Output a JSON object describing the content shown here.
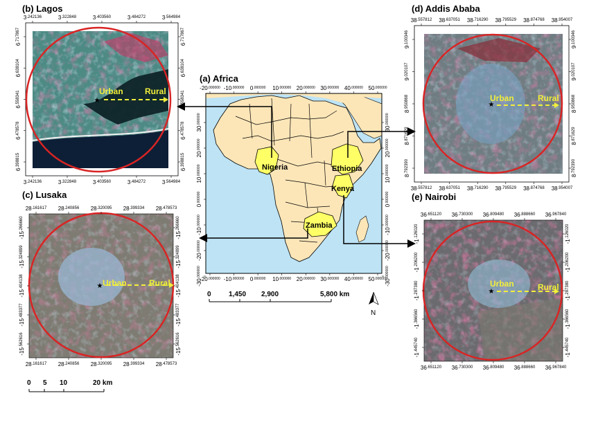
{
  "panels": {
    "africa": {
      "title": "(a) Africa",
      "countries": [
        "Nigeria",
        "Ethiopia",
        "Kenya",
        "Zambia"
      ],
      "lon_ticks": [
        "-20",
        "-10",
        "0",
        "10",
        "20",
        "30",
        "40",
        "50"
      ],
      "lon_suffix": ".000000",
      "lat_ticks": [
        "30",
        "20",
        "10",
        "0",
        "-10",
        "-20",
        "-30"
      ],
      "lat_suffix": ".000000",
      "scale_labels": [
        "0",
        "1,450",
        "2,900",
        "5,800 km"
      ],
      "north_label": "N"
    },
    "lagos": {
      "title": "(b) Lagos",
      "urban_label": "Urban",
      "rural_label": "Rural",
      "top_ticks": [
        [
          "3",
          ".242136"
        ],
        [
          "3",
          ".322848"
        ],
        [
          "3",
          ".403560"
        ],
        [
          "3",
          ".484272"
        ],
        [
          "3",
          ".564984"
        ]
      ],
      "left_ticks": [
        [
          "6",
          ".717867"
        ],
        [
          "6",
          ".638104"
        ],
        [
          "6",
          ".558341"
        ],
        [
          "6",
          ".478578"
        ],
        [
          "6",
          ".398815"
        ]
      ]
    },
    "lusaka": {
      "title": "(c) Lusaka",
      "urban_label": "Urban",
      "rural_label": "Rural",
      "top_ticks": [
        [
          "28",
          ".161617"
        ],
        [
          "28",
          ".240856"
        ],
        [
          "28",
          ".320095"
        ],
        [
          "28",
          ".399334"
        ],
        [
          "28",
          ".478573"
        ]
      ],
      "left_ticks": [
        [
          "-15",
          ".266660"
        ],
        [
          "-15",
          ".324899"
        ],
        [
          "-15",
          ".404138"
        ],
        [
          "-15",
          ".483377"
        ],
        [
          "-15",
          ".562616"
        ]
      ],
      "scale_labels": [
        "0",
        "5",
        "10",
        "20 km"
      ]
    },
    "addis": {
      "title": "(d) Addis Ababa",
      "urban_label": "Urban",
      "rural_label": "Rural",
      "top_ticks": [
        [
          "38",
          ".557812"
        ],
        [
          "38",
          ".637051"
        ],
        [
          "38",
          ".716290"
        ],
        [
          "38",
          ".795529"
        ],
        [
          "38",
          ".874768"
        ],
        [
          "38",
          ".954007"
        ]
      ],
      "left_ticks": [
        [
          "9",
          ".100346"
        ],
        [
          "9",
          ".020107"
        ],
        [
          "8",
          ".950868"
        ],
        [
          "8",
          ".871629"
        ],
        [
          "8",
          ".792390"
        ]
      ]
    },
    "nairobi": {
      "title": "(e) Nairobi",
      "urban_label": "Urban",
      "rural_label": "Rural",
      "top_ticks": [
        [
          "36",
          ".651120"
        ],
        [
          "36",
          ".730300"
        ],
        [
          "36",
          ".809480"
        ],
        [
          "36",
          ".888660"
        ],
        [
          "36",
          ".967840"
        ]
      ],
      "left_ticks": [
        [
          "-1",
          ".126020"
        ],
        [
          "-1",
          ".206200"
        ],
        [
          "-1",
          ".287380"
        ],
        [
          "-1",
          ".366560"
        ],
        [
          "-1",
          ".445740"
        ]
      ]
    }
  },
  "colors": {
    "ocean": "#bde3f5",
    "land": "#fce6b8",
    "highlight": "#ffff66",
    "circle": "#d92424",
    "arrow_dashed": "#f2ef3a"
  }
}
